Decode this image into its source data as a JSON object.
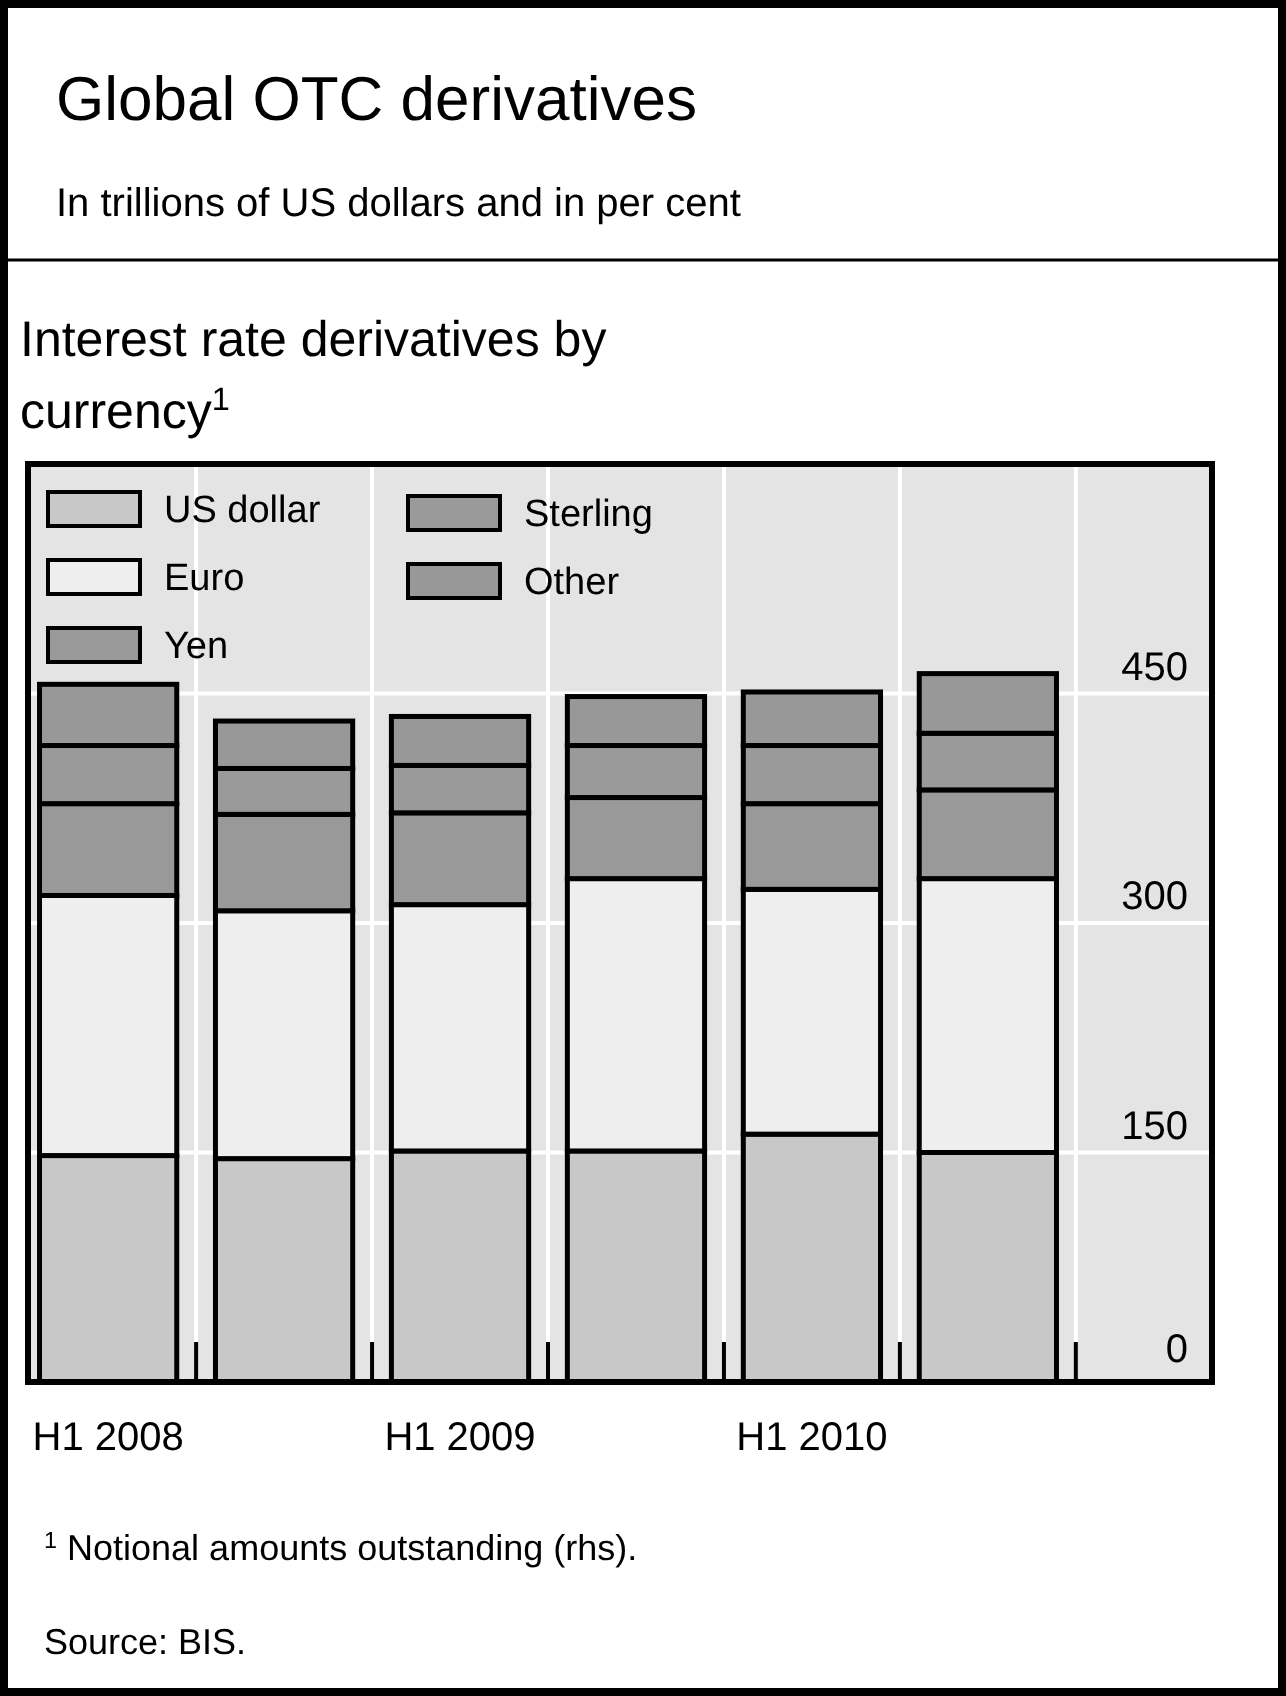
{
  "chart_data": {
    "type": "bar",
    "stacked": true,
    "title": "Global OTC derivatives",
    "subtitle": "In trillions of US dollars and in per cent",
    "annotations": [
      "Interest rate derivatives by currency$^{1}$",
      "$^{1}$ Notional amounts outstanding (rhs).",
      "Source: BIS."
    ],
    "categories": [
      "H1 2008",
      null,
      "H1 2009",
      null,
      "H1 2010",
      null
    ],
    "series": [
      {
        "name": "US dollar",
        "color": "#c8c8c8",
        "values": [
          148,
          146,
          151,
          151,
          162,
          150
        ]
      },
      {
        "name": "Euro",
        "color": "#eeeeee",
        "values": [
          170,
          162,
          161,
          178,
          160,
          179
        ]
      },
      {
        "name": "Yen",
        "color": "#999999",
        "values": [
          60,
          63,
          60,
          53,
          56,
          58
        ]
      },
      {
        "name": "Sterling",
        "color": "#9a9a9a",
        "values": [
          38,
          30,
          31,
          34,
          38,
          37
        ]
      },
      {
        "name": "Other",
        "color": "#989898",
        "values": [
          40,
          31,
          32,
          32,
          35,
          39
        ]
      }
    ],
    "ylim": [
      0,
      600
    ],
    "yticks": [
      0,
      150,
      300,
      450
    ],
    "grid": true,
    "legend": "top left"
  }
}
